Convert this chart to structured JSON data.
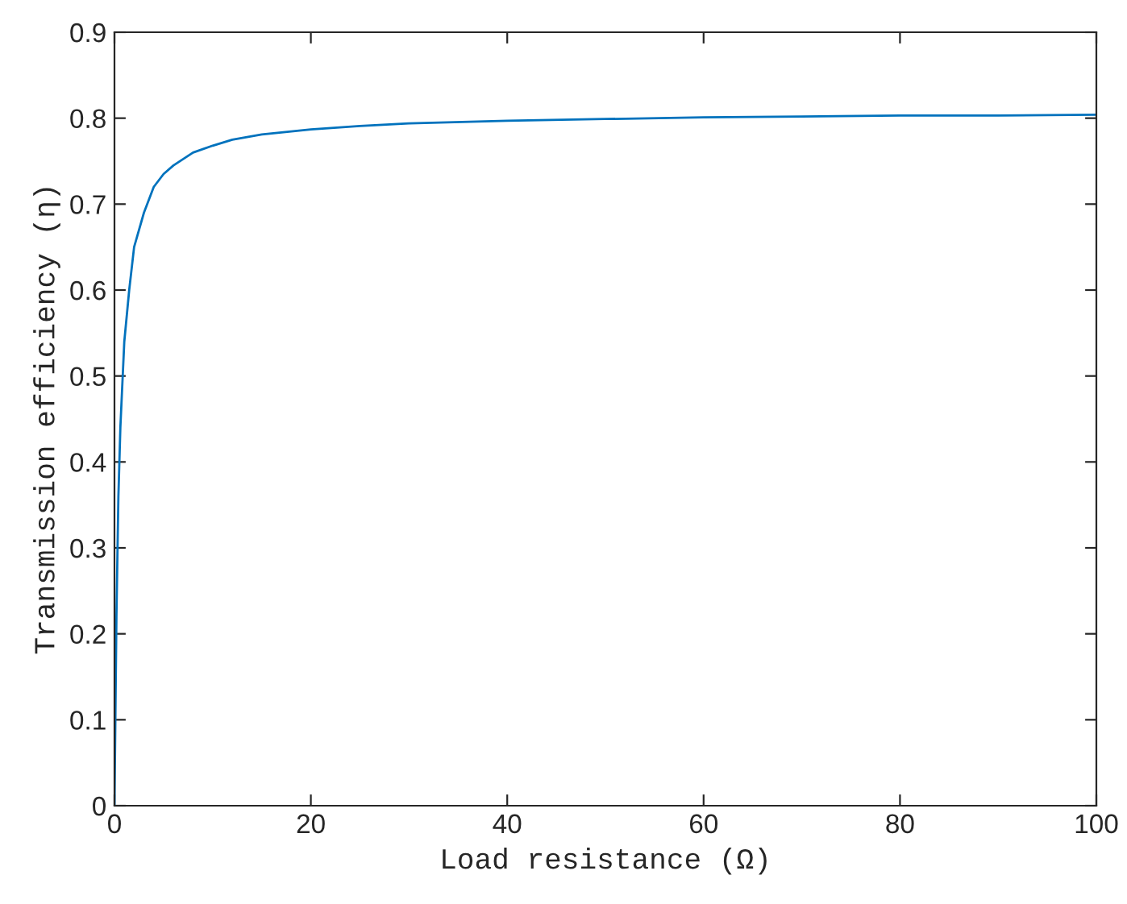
{
  "chart_data": {
    "type": "line",
    "xlabel": "Load resistance (Ω)",
    "ylabel": "Transmission efficiency (η)",
    "xlim": [
      0,
      100
    ],
    "xticks": [
      0,
      20,
      40,
      60,
      80,
      100
    ],
    "ylim": [
      0,
      0.9
    ],
    "yticks": [
      0,
      0.1,
      0.2,
      0.3,
      0.4,
      0.5,
      0.6,
      0.7,
      0.8,
      0.9
    ],
    "grid": false,
    "line_style": "solid",
    "series": [
      {
        "color": "#0072bd",
        "x": [
          0,
          0.2,
          0.4,
          0.6,
          1,
          1.5,
          2,
          3,
          4,
          5,
          6,
          8,
          10,
          12,
          15,
          20,
          25,
          30,
          40,
          50,
          60,
          70,
          80,
          90,
          100
        ],
        "values": [
          0,
          0.22,
          0.36,
          0.44,
          0.54,
          0.6,
          0.65,
          0.69,
          0.72,
          0.735,
          0.745,
          0.76,
          0.768,
          0.775,
          0.781,
          0.787,
          0.791,
          0.794,
          0.797,
          0.799,
          0.801,
          0.802,
          0.803,
          0.803,
          0.804
        ]
      }
    ]
  }
}
